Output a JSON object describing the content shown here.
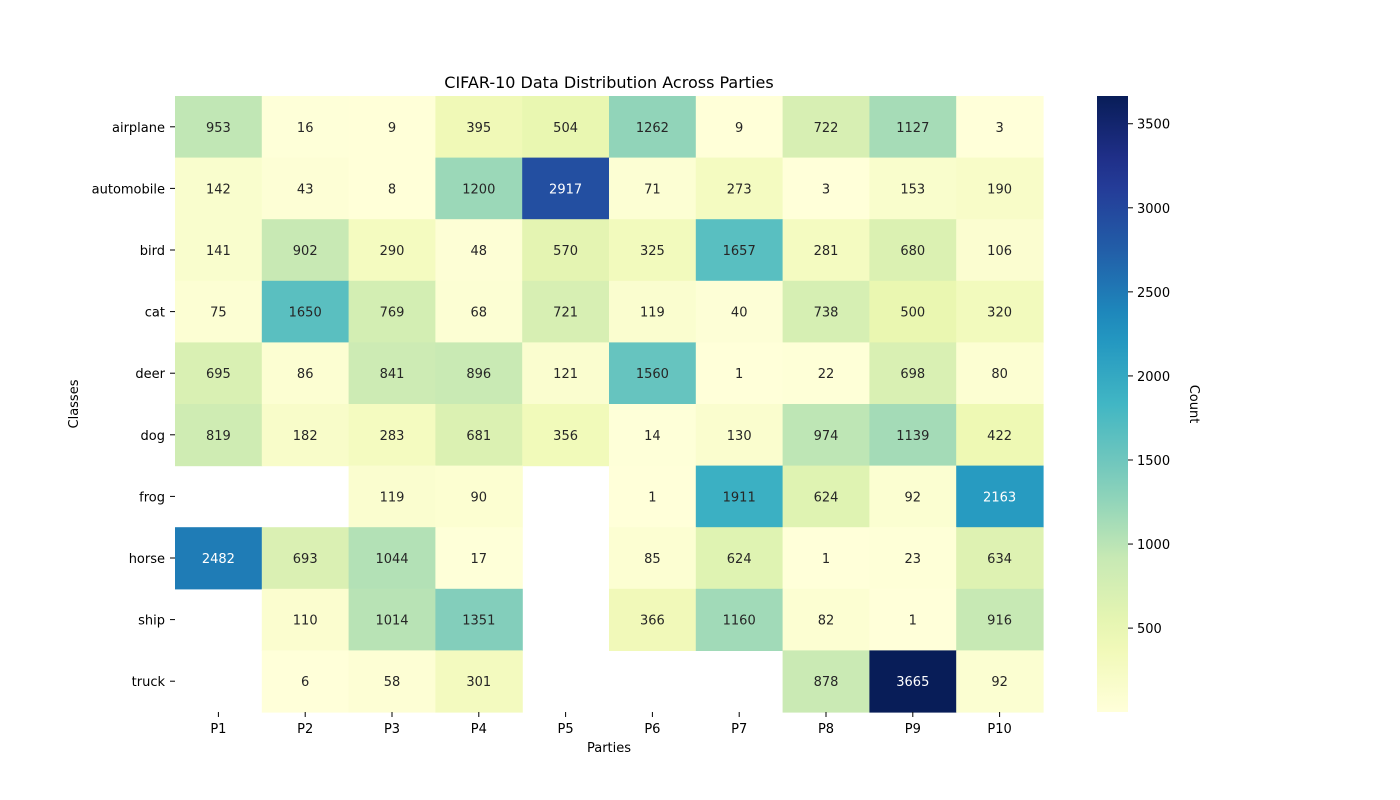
{
  "chart_data": {
    "type": "heatmap",
    "title": "CIFAR-10 Data Distribution Across Parties",
    "xlabel": "Parties",
    "ylabel": "Classes",
    "colorbar_label": "Count",
    "colormap": "YlGnBu",
    "vmin": 1,
    "vmax": 3665,
    "colorbar_ticks": [
      500,
      1000,
      1500,
      2000,
      2500,
      3000,
      3500
    ],
    "columns": [
      "P1",
      "P2",
      "P3",
      "P4",
      "P5",
      "P6",
      "P7",
      "P8",
      "P9",
      "P10"
    ],
    "rows": [
      "airplane",
      "automobile",
      "bird",
      "cat",
      "deer",
      "dog",
      "frog",
      "horse",
      "ship",
      "truck"
    ],
    "values": [
      [
        953,
        16,
        9,
        395,
        504,
        1262,
        9,
        722,
        1127,
        3
      ],
      [
        142,
        43,
        8,
        1200,
        2917,
        71,
        273,
        3,
        153,
        190
      ],
      [
        141,
        902,
        290,
        48,
        570,
        325,
        1657,
        281,
        680,
        106
      ],
      [
        75,
        1650,
        769,
        68,
        721,
        119,
        40,
        738,
        500,
        320
      ],
      [
        695,
        86,
        841,
        896,
        121,
        1560,
        1,
        22,
        698,
        80
      ],
      [
        819,
        182,
        283,
        681,
        356,
        14,
        130,
        974,
        1139,
        422
      ],
      [
        null,
        null,
        119,
        90,
        null,
        1,
        1911,
        624,
        92,
        2163
      ],
      [
        2482,
        693,
        1044,
        17,
        null,
        85,
        624,
        1,
        23,
        634
      ],
      [
        null,
        110,
        1014,
        1351,
        null,
        366,
        1160,
        82,
        1,
        916
      ],
      [
        null,
        6,
        58,
        301,
        null,
        null,
        null,
        878,
        3665,
        92
      ]
    ]
  }
}
